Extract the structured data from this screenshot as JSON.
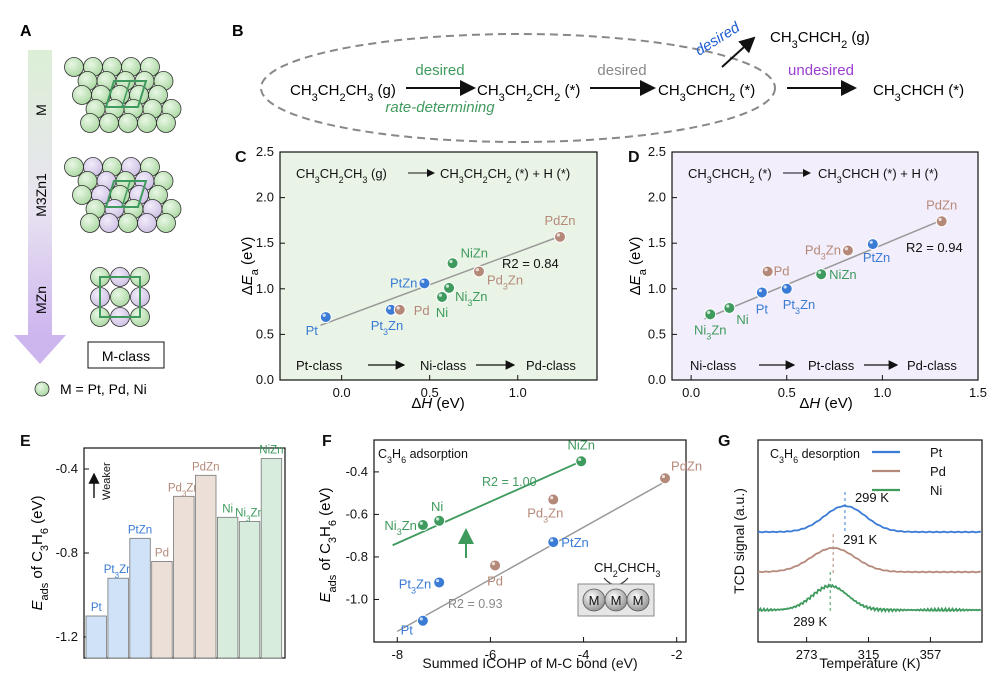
{
  "colors": {
    "pt": "#3a7bd5",
    "pd": "#b5897a",
    "ni": "#3f9a5e",
    "green_bg": "#e9f4e6",
    "purple_bg": "#f3eefb",
    "grid_line": "#9a9a9a"
  },
  "panel_labels": {
    "a": "A",
    "b": "B",
    "c": "C",
    "d": "D",
    "e": "E",
    "f": "F",
    "g": "G"
  },
  "panel_a": {
    "arrow_labels": [
      "M",
      "M3Zn1",
      "MZn"
    ],
    "class_box": "M-class",
    "legend_text": "M = Pt, Pd, Ni"
  },
  "panel_b": {
    "propane_g": "CH3CH2CH3 (g)",
    "propyl": "CH3CH2CH2 (*)",
    "propylene_ads": "CH3CHCH2 (*)",
    "propylene_gas": "CH3CHCH2 (g)",
    "propenyl": "CH3CHCH (*)",
    "step1_label": "desired",
    "step1_sub": "rate-determining",
    "step2_label": "desired",
    "step3_label": "desired",
    "step4_label": "undesired"
  },
  "chart_data": [
    {
      "id": "C",
      "type": "scatter",
      "title": "CH3CH2CH3 (g) → CH3CH2CH2 (*) + H (*)",
      "xlabel": "ΔH (eV)",
      "ylabel": "ΔEa (eV)",
      "xlim": [
        -0.35,
        1.45
      ],
      "ylim": [
        0,
        2.5
      ],
      "xticks": [
        "0.0",
        "0.5",
        "1.0"
      ],
      "yticks": [
        "0.0",
        "0.5",
        "1.0",
        "1.5",
        "2.0",
        "2.5"
      ],
      "points": [
        {
          "label": "Pt",
          "x": -0.09,
          "y": 0.69,
          "class": "pt"
        },
        {
          "label": "Pt3Zn",
          "x": 0.28,
          "y": 0.77,
          "class": "pt"
        },
        {
          "label": "Pd",
          "x": 0.33,
          "y": 0.77,
          "class": "pd"
        },
        {
          "label": "PtZn",
          "x": 0.47,
          "y": 1.06,
          "class": "pt"
        },
        {
          "label": "Ni",
          "x": 0.57,
          "y": 0.91,
          "class": "ni"
        },
        {
          "label": "Ni3Zn",
          "x": 0.61,
          "y": 1.01,
          "class": "ni"
        },
        {
          "label": "NiZn",
          "x": 0.63,
          "y": 1.28,
          "class": "ni"
        },
        {
          "label": "Pd3Zn",
          "x": 0.78,
          "y": 1.19,
          "class": "pd"
        },
        {
          "label": "PdZn",
          "x": 1.24,
          "y": 1.57,
          "class": "pd"
        }
      ],
      "fit": {
        "x": [
          -0.12,
          1.26
        ],
        "y": [
          0.6,
          1.59
        ]
      },
      "r2": "R2 = 0.84",
      "trend": [
        "Pt-class",
        "Ni-class",
        "Pd-class"
      ]
    },
    {
      "id": "D",
      "type": "scatter",
      "title": "CH3CHCH2 (*) → CH3CHCH (*) + H (*)",
      "xlabel": "ΔH (eV)",
      "ylabel": "ΔEa (eV)",
      "xlim": [
        -0.1,
        1.5
      ],
      "ylim": [
        0,
        2.5
      ],
      "xticks": [
        "0.0",
        "0.5",
        "1.0",
        "1.5"
      ],
      "yticks": [
        "0.0",
        "0.5",
        "1.0",
        "1.5",
        "2.0",
        "2.5"
      ],
      "points": [
        {
          "label": "Ni3Zn",
          "x": 0.1,
          "y": 0.72,
          "class": "ni"
        },
        {
          "label": "Ni",
          "x": 0.2,
          "y": 0.79,
          "class": "ni"
        },
        {
          "label": "Pt",
          "x": 0.37,
          "y": 0.96,
          "class": "pt"
        },
        {
          "label": "Pd",
          "x": 0.4,
          "y": 1.19,
          "class": "pd"
        },
        {
          "label": "Pt3Zn",
          "x": 0.5,
          "y": 1.0,
          "class": "pt"
        },
        {
          "label": "NiZn",
          "x": 0.68,
          "y": 1.16,
          "class": "ni"
        },
        {
          "label": "Pd3Zn",
          "x": 0.82,
          "y": 1.42,
          "class": "pd"
        },
        {
          "label": "PtZn",
          "x": 0.95,
          "y": 1.49,
          "class": "pt"
        },
        {
          "label": "PdZn",
          "x": 1.31,
          "y": 1.74,
          "class": "pd"
        }
      ],
      "fit": {
        "x": [
          0.07,
          1.33
        ],
        "y": [
          0.67,
          1.77
        ]
      },
      "r2": "R2 = 0.94",
      "trend": [
        "Ni-class",
        "Pt-class",
        "Pd-class"
      ]
    },
    {
      "id": "E",
      "type": "bar",
      "ylabel": "Eads of C3H6 (eV)",
      "ylim": [
        -1.3,
        -0.3
      ],
      "base": -1.3,
      "yticks": [
        "-0.4",
        "-0.8",
        "-1.2"
      ],
      "arrow_label": "Weaker",
      "categories": [
        "Pt",
        "Pt3Zn",
        "PtZn",
        "Pd",
        "Pd3Zn",
        "PdZn",
        "Ni",
        "Ni3Zn",
        "NiZn"
      ],
      "values": [
        -1.1,
        -0.92,
        -0.73,
        -0.84,
        -0.53,
        -0.43,
        -0.63,
        -0.65,
        -0.35
      ],
      "classes": [
        "pt",
        "pt",
        "pt",
        "pd",
        "pd",
        "pd",
        "ni",
        "ni",
        "ni"
      ]
    },
    {
      "id": "F",
      "type": "scatter",
      "title": "C3H6 adsorption",
      "xlabel": "Summed ICOHP of M-C bond (eV)",
      "ylabel": "Eads of C3H6 (eV)",
      "xlim": [
        -8.5,
        -1.8
      ],
      "ylim": [
        -1.2,
        -0.25
      ],
      "xticks": [
        "-8",
        "-6",
        "-4",
        "-2"
      ],
      "yticks": [
        "-0.4",
        "-0.6",
        "-0.8",
        "-1.0"
      ],
      "points": [
        {
          "label": "Pt",
          "x": -7.45,
          "y": -1.1,
          "class": "pt"
        },
        {
          "label": "Pt3Zn",
          "x": -7.1,
          "y": -0.92,
          "class": "pt"
        },
        {
          "label": "Pd",
          "x": -5.9,
          "y": -0.84,
          "class": "pd"
        },
        {
          "label": "PtZn",
          "x": -4.65,
          "y": -0.73,
          "class": "pt"
        },
        {
          "label": "Pd3Zn",
          "x": -4.65,
          "y": -0.53,
          "class": "pd"
        },
        {
          "label": "PdZn",
          "x": -2.25,
          "y": -0.43,
          "class": "pd"
        },
        {
          "label": "Ni3Zn",
          "x": -7.45,
          "y": -0.65,
          "class": "ni"
        },
        {
          "label": "Ni",
          "x": -7.1,
          "y": -0.63,
          "class": "ni"
        },
        {
          "label": "NiZn",
          "x": -4.05,
          "y": -0.35,
          "class": "ni"
        }
      ],
      "fit_ni": {
        "x": [
          -8.1,
          -3.95
        ],
        "y": [
          -0.745,
          -0.34
        ]
      },
      "fit_rest": {
        "x": [
          -8.0,
          -2.2
        ],
        "y": [
          -1.15,
          -0.44
        ]
      },
      "r2_ni": "R2 = 1.00",
      "r2_rest": "R2 = 0.93",
      "inset_label": "CH2CHCH3",
      "inset_atoms": [
        "M",
        "M",
        "M"
      ]
    },
    {
      "id": "G",
      "type": "line",
      "title": "C3H6 desorption",
      "xlabel": "Temperature (K)",
      "ylabel": "TCD signal (a.u.)",
      "xlim": [
        240,
        392
      ],
      "xticks": [
        "273",
        "315",
        "357"
      ],
      "series": [
        {
          "name": "Pt",
          "class": "pt",
          "baseline": 92,
          "peak_T": 299,
          "height": 26,
          "width": 14,
          "peak_label": "299 K"
        },
        {
          "name": "Pd",
          "class": "pd",
          "baseline": 132,
          "peak_T": 291,
          "height": 24,
          "width": 15,
          "peak_label": "291 K"
        },
        {
          "name": "Ni",
          "class": "ni",
          "baseline": 170,
          "peak_T": 289,
          "height": 24,
          "width": 12,
          "peak_label": "289 K"
        }
      ]
    }
  ]
}
